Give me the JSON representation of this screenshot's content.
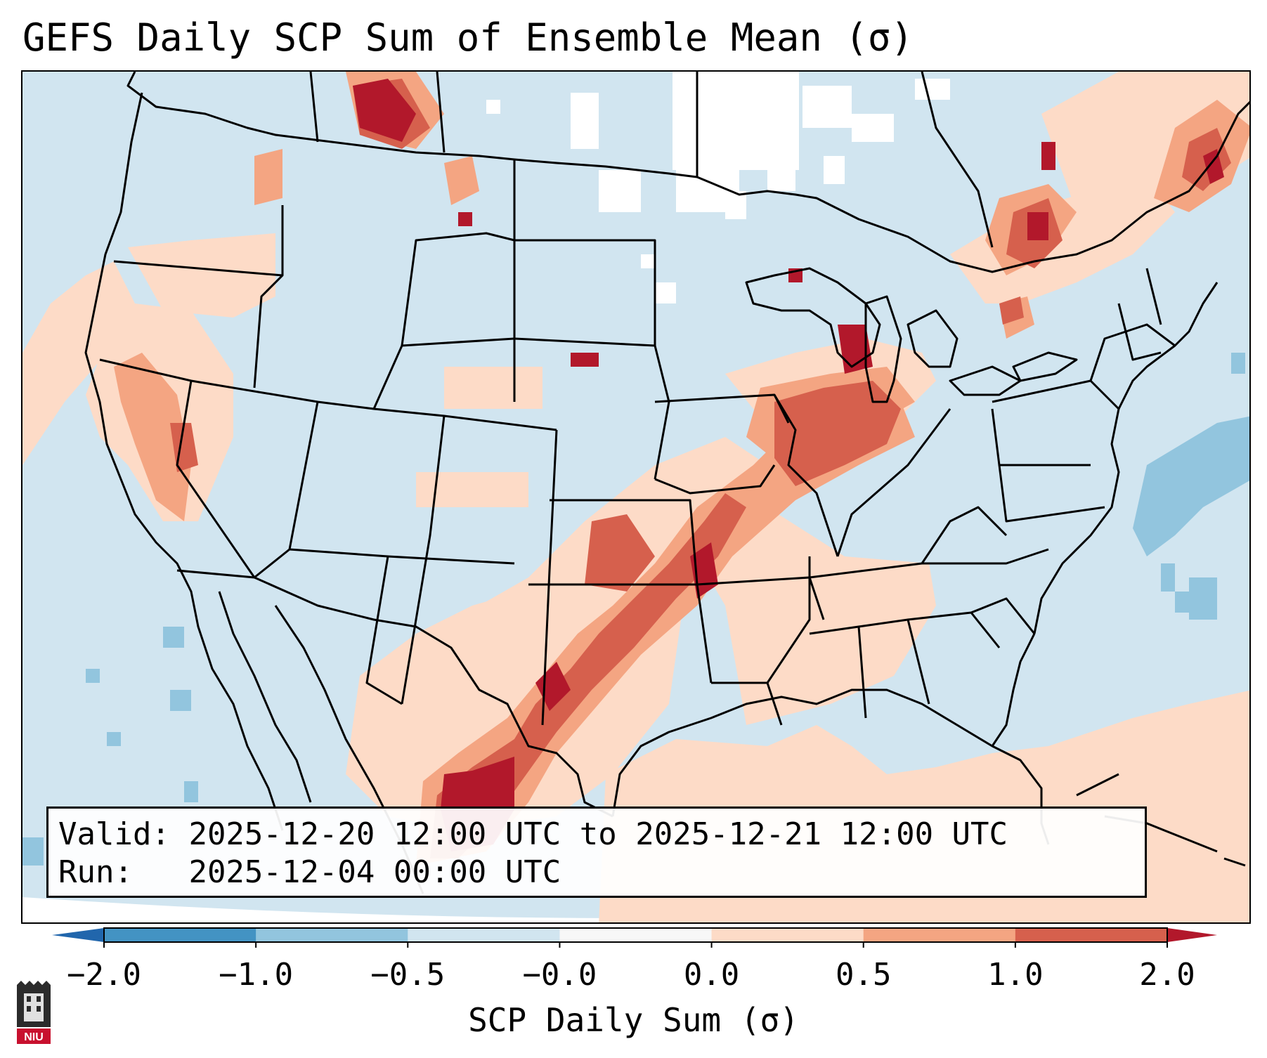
{
  "title": "GEFS Daily SCP Sum of Ensemble Mean (σ)",
  "info": {
    "valid_label": "Valid:",
    "valid_value": "2025-12-20 12:00 UTC to 2025-12-21 12:00 UTC",
    "run_label": "Run:",
    "run_value": "2025-12-04 00:00 UTC"
  },
  "colorbar": {
    "label": "SCP Daily Sum (σ)",
    "ticks": [
      "−2.0",
      "−1.0",
      "−0.5",
      "−0.0",
      "0.0",
      "0.5",
      "1.0",
      "2.0"
    ],
    "bins": [
      {
        "from": "-2.0",
        "to": "-1.0",
        "color": "#4393c3"
      },
      {
        "from": "-1.0",
        "to": "-0.5",
        "color": "#92c5de"
      },
      {
        "from": "-0.5",
        "to": "-0.0",
        "color": "#d1e5f0"
      },
      {
        "from": "-0.0",
        "to": "0.0",
        "color": "#f7f7f7"
      },
      {
        "from": "0.0",
        "to": "0.5",
        "color": "#fddbc7"
      },
      {
        "from": "0.5",
        "to": "1.0",
        "color": "#f4a582"
      },
      {
        "from": "1.0",
        "to": "2.0",
        "color": "#d6604d"
      }
    ],
    "under_color": "#2166ac",
    "over_color": "#b2182b"
  },
  "colors": {
    "ocean_background": "#d1e5f0",
    "missing": "#ffffff",
    "light_positive": "#fddbc7",
    "moderate_positive": "#f4a582",
    "strong_positive": "#d6604d",
    "extreme_positive": "#b2182b",
    "light_negative": "#92c5de"
  },
  "logo": {
    "text": "NIU",
    "color": "#c8102e"
  }
}
